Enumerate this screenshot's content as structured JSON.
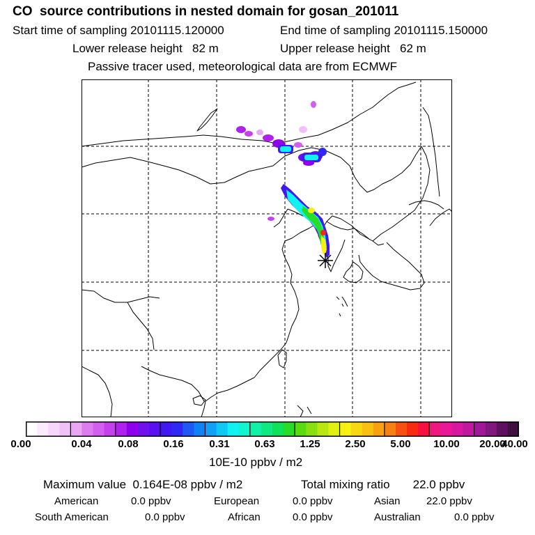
{
  "header": {
    "title": "CO  source contributions in nested domain for gosan_201011",
    "start": "Start time of sampling 20101115.120000",
    "end": "End time of sampling 20101115.150000",
    "lower": "Lower release height   82 m",
    "upper": "Upper release height   62 m",
    "note": "Passive tracer used, meteorological data are from ECMWF"
  },
  "colorbar": {
    "tick_labels": [
      "0.00",
      "0.04",
      "0.08",
      "0.16",
      "0.31",
      "0.63",
      "1.25",
      "2.50",
      "5.00",
      "10.00",
      "20.00",
      "40.00"
    ],
    "unit": "10E-10 ppbv / m2",
    "colors": [
      "#ffffff",
      "#fbeafd",
      "#f7d6fb",
      "#f1c0f8",
      "#e9a6f5",
      "#dc7cf0",
      "#d35ef0",
      "#c640ee",
      "#b020ee",
      "#9000ee",
      "#7010ef",
      "#5a10f2",
      "#4018f2",
      "#3028f5",
      "#2058f5",
      "#1080f5",
      "#10a0f5",
      "#10c8f5",
      "#10f2f2",
      "#10f5d0",
      "#10f2a8",
      "#10e882",
      "#10e05a",
      "#28dc28",
      "#58dc10",
      "#88e010",
      "#b8e810",
      "#e0f010",
      "#f8f010",
      "#f8d810",
      "#f8c010",
      "#f8a010",
      "#f88010",
      "#f85010",
      "#f82a10",
      "#f81040",
      "#f01880",
      "#e81898",
      "#d818a0",
      "#c018a0",
      "#a01898",
      "#801880",
      "#601060",
      "#401040"
    ]
  },
  "summary": {
    "max": "Maximum value  0.164E-08 ppbv / m2",
    "total": "Total mixing ratio       22.0 ppbv"
  },
  "regions": [
    {
      "name": "American",
      "value": "0.0 ppbv"
    },
    {
      "name": "European",
      "value": "0.0 ppbv"
    },
    {
      "name": "Asian",
      "value": "22.0 ppbv"
    },
    {
      "name": "South American",
      "value": "0.0 ppbv"
    },
    {
      "name": "African",
      "value": "0.0 ppbv"
    },
    {
      "name": "Australian",
      "value": "0.0 ppbv"
    }
  ],
  "map": {
    "receptor_marker": "asterisk",
    "plume_colors": {
      "magenta": "#b020ee",
      "blue": "#4018f2",
      "cyan": "#10f2f2",
      "green": "#28dc28",
      "yellow": "#f8f010",
      "red": "#f82a10"
    }
  }
}
